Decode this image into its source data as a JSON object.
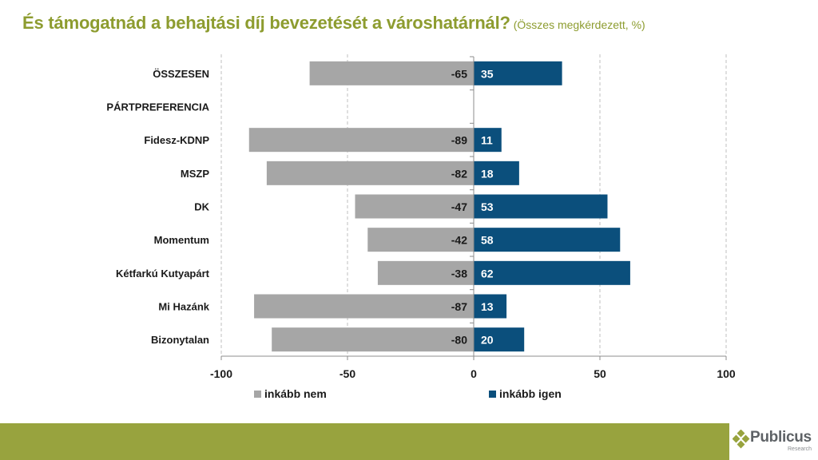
{
  "header": {
    "title": "És támogatnád a behajtási díj bevezetését a városhatárnál?",
    "subtitle": "(Összes megkérdezett, %)"
  },
  "brand": {
    "name": "Publicus",
    "tagline": "Research",
    "accent_color": "#98a33e"
  },
  "chart_data": {
    "type": "bar",
    "orientation": "horizontal",
    "stacked": "diverging",
    "title": "És támogatnád a behajtási díj bevezetését a városhatárnál?",
    "subtitle": "(Összes megkérdezett, %)",
    "xlabel": "",
    "ylabel": "",
    "xlim": [
      -100,
      100
    ],
    "xticks": [
      -100,
      -50,
      0,
      50,
      100
    ],
    "xtick_labels": [
      "-100",
      "-50",
      "0",
      "50",
      "100"
    ],
    "grid": "vertical dashed",
    "legend_position": "bottom",
    "categories": [
      "ÖSSZESEN",
      "PÁRTPREFERENCIA",
      "Fidesz-KDNP",
      "MSZP",
      "DK",
      "Momentum",
      "Kétfarkú Kutyapárt",
      "Mi Hazánk",
      "Bizonytalan"
    ],
    "series": [
      {
        "name": "inkább nem",
        "color": "#a6a6a6",
        "label_color": "#1a1a1a",
        "values": [
          -65,
          null,
          -89,
          -82,
          -47,
          -42,
          -38,
          -87,
          -80
        ]
      },
      {
        "name": "inkább igen",
        "color": "#0b4f7c",
        "label_color": "#ffffff",
        "values": [
          35,
          null,
          11,
          18,
          53,
          58,
          62,
          13,
          20
        ]
      }
    ]
  }
}
